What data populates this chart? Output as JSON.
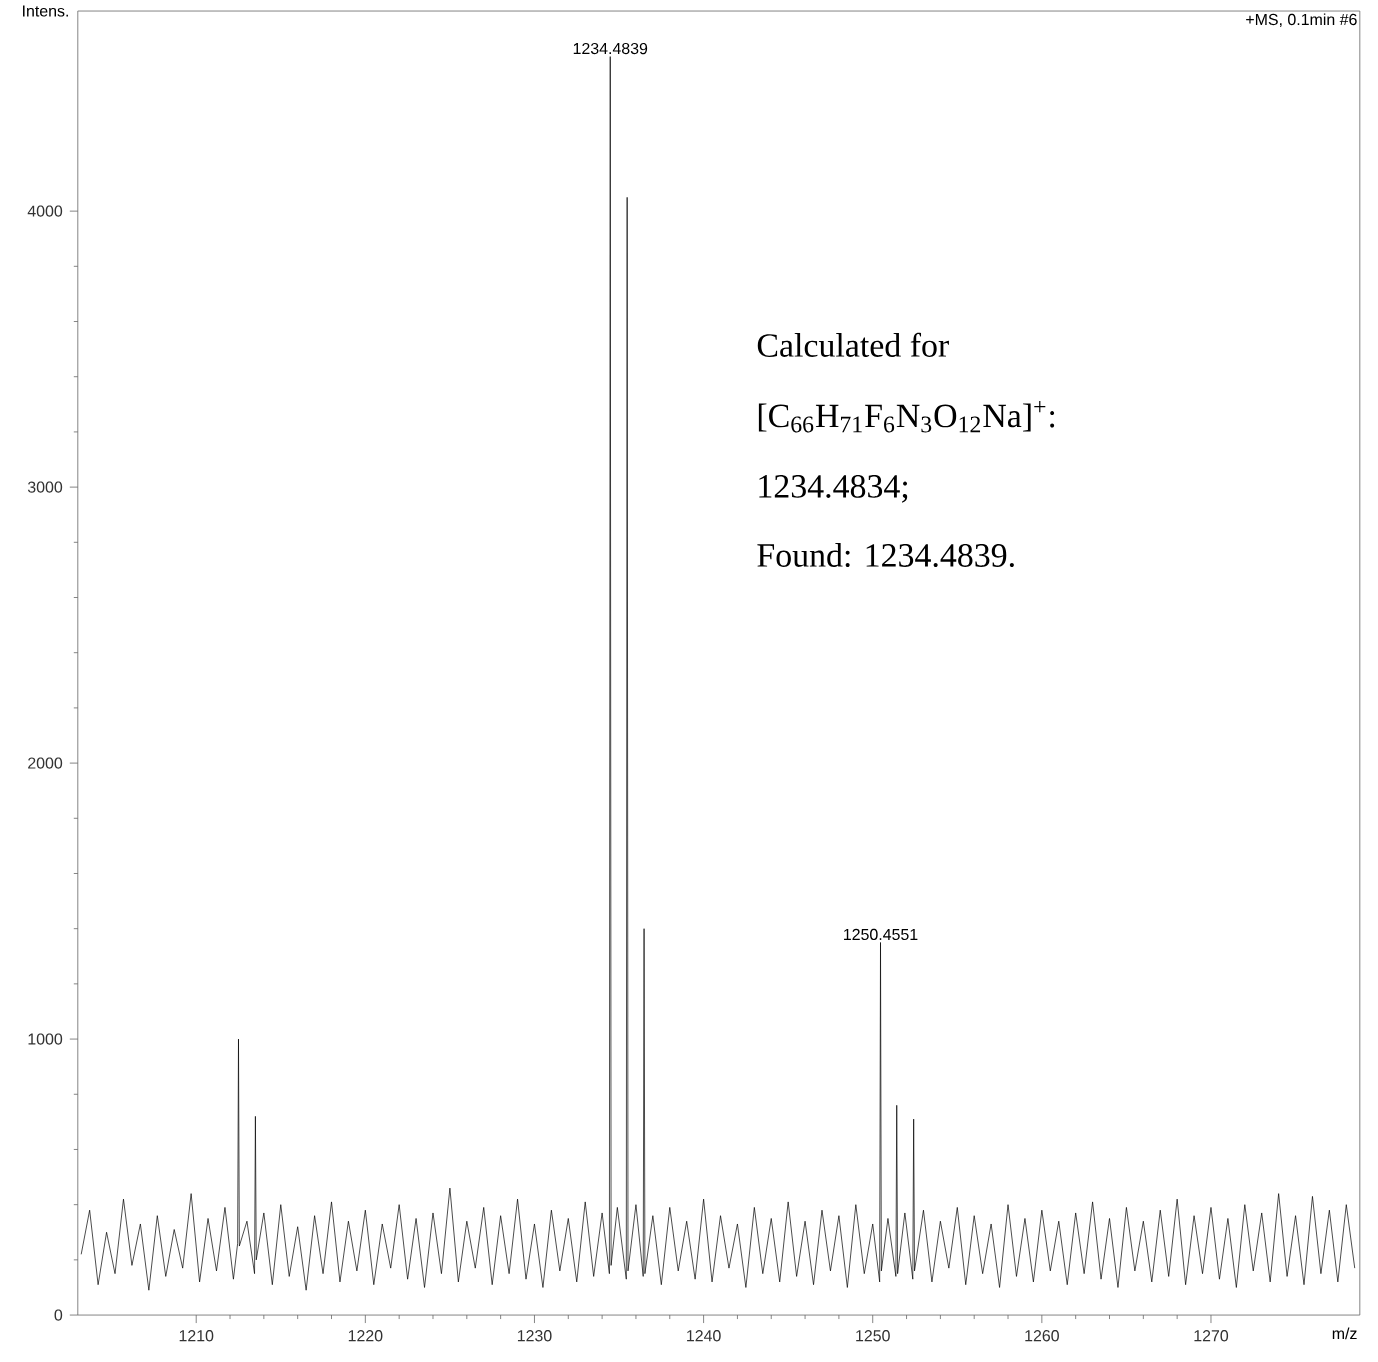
{
  "chart_data": {
    "type": "line",
    "xlabel": "m/z",
    "ylabel": "Intens.",
    "xlim": [
      1203.0,
      1278.8
    ],
    "ylim": [
      0,
      4725
    ],
    "xticks": [
      1210,
      1220,
      1230,
      1240,
      1250,
      1260,
      1270
    ],
    "yticks": [
      0,
      1000,
      2000,
      3000,
      4000
    ],
    "annotations": [
      {
        "text": "1234.4839",
        "x": 1234.48,
        "y": 4560
      },
      {
        "text": "1250.4551",
        "x": 1250.46,
        "y": 1350
      },
      "+MS, 0.1min #6",
      "Calculated for",
      "[C$_{66}$H$_{71}$F$_{6}$N$_{3}$O$_{12}$Na]$^{+}$:",
      "1234.4834;",
      "Found: 1234.4839."
    ],
    "series": [
      {
        "color": "#000000",
        "x": [
          1203.2,
          1203.7,
          1204.2,
          1204.7,
          1205.2,
          1205.7,
          1206.2,
          1206.7,
          1207.2,
          1207.7,
          1208.2,
          1208.7,
          1209.2,
          1209.7,
          1210.2,
          1210.7,
          1211.2,
          1211.7,
          1212.2,
          1212.45,
          1212.5,
          1212.55,
          1213.0,
          1213.45,
          1213.5,
          1213.55,
          1214.0,
          1214.5,
          1215.0,
          1215.5,
          1216.0,
          1216.5,
          1217.0,
          1217.5,
          1218.0,
          1218.5,
          1219.0,
          1219.5,
          1220.0,
          1220.5,
          1221.0,
          1221.5,
          1222.0,
          1222.5,
          1223.0,
          1223.5,
          1224.0,
          1224.5,
          1225.0,
          1225.5,
          1226.0,
          1226.5,
          1227.0,
          1227.5,
          1228.0,
          1228.5,
          1229.0,
          1229.5,
          1230.0,
          1230.5,
          1231.0,
          1231.5,
          1232.0,
          1232.5,
          1233.0,
          1233.5,
          1234.0,
          1234.43,
          1234.48,
          1234.53,
          1234.9,
          1235.43,
          1235.48,
          1235.53,
          1236.0,
          1236.43,
          1236.48,
          1236.53,
          1237.0,
          1237.5,
          1238.0,
          1238.5,
          1239.0,
          1239.5,
          1240.0,
          1240.5,
          1241.0,
          1241.5,
          1242.0,
          1242.5,
          1243.0,
          1243.5,
          1244.0,
          1244.5,
          1245.0,
          1245.5,
          1246.0,
          1246.5,
          1247.0,
          1247.5,
          1248.0,
          1248.5,
          1249.0,
          1249.5,
          1250.0,
          1250.41,
          1250.46,
          1250.51,
          1250.9,
          1251.37,
          1251.42,
          1251.47,
          1251.9,
          1252.37,
          1252.42,
          1252.47,
          1253.0,
          1253.5,
          1254.0,
          1254.5,
          1255.0,
          1255.5,
          1256.0,
          1256.5,
          1257.0,
          1257.5,
          1258.0,
          1258.5,
          1259.0,
          1259.5,
          1260.0,
          1260.5,
          1261.0,
          1261.5,
          1262.0,
          1262.5,
          1263.0,
          1263.5,
          1264.0,
          1264.5,
          1265.0,
          1265.5,
          1266.0,
          1266.5,
          1267.0,
          1267.5,
          1268.0,
          1268.5,
          1269.0,
          1269.5,
          1270.0,
          1270.5,
          1271.0,
          1271.5,
          1272.0,
          1272.5,
          1273.0,
          1273.5,
          1274.0,
          1274.5,
          1275.0,
          1275.5,
          1276.0,
          1276.5,
          1277.0,
          1277.5,
          1278.0,
          1278.5
        ],
        "values": [
          220,
          380,
          110,
          300,
          150,
          420,
          180,
          330,
          90,
          360,
          140,
          310,
          170,
          440,
          120,
          350,
          160,
          390,
          130,
          260,
          1000,
          250,
          340,
          150,
          720,
          200,
          370,
          110,
          400,
          140,
          320,
          90,
          360,
          150,
          410,
          120,
          340,
          160,
          380,
          110,
          330,
          170,
          400,
          130,
          350,
          100,
          370,
          150,
          460,
          120,
          340,
          170,
          390,
          110,
          360,
          150,
          420,
          130,
          330,
          100,
          380,
          160,
          350,
          120,
          410,
          140,
          370,
          150,
          4560,
          180,
          390,
          130,
          4050,
          160,
          400,
          140,
          1400,
          150,
          360,
          110,
          390,
          160,
          340,
          130,
          420,
          120,
          360,
          170,
          330,
          100,
          390,
          150,
          350,
          120,
          410,
          140,
          340,
          110,
          380,
          160,
          360,
          100,
          400,
          150,
          330,
          120,
          1350,
          160,
          350,
          140,
          760,
          150,
          370,
          130,
          710,
          160,
          380,
          120,
          340,
          170,
          390,
          110,
          360,
          150,
          330,
          100,
          400,
          140,
          350,
          120,
          380,
          160,
          340,
          110,
          370,
          150,
          410,
          130,
          350,
          100,
          390,
          160,
          340,
          120,
          380,
          140,
          420,
          110,
          360,
          150,
          390,
          130,
          350,
          100,
          400,
          160,
          370,
          120,
          440,
          140,
          360,
          110,
          430,
          150,
          380,
          120,
          400,
          170
        ]
      }
    ]
  }
}
